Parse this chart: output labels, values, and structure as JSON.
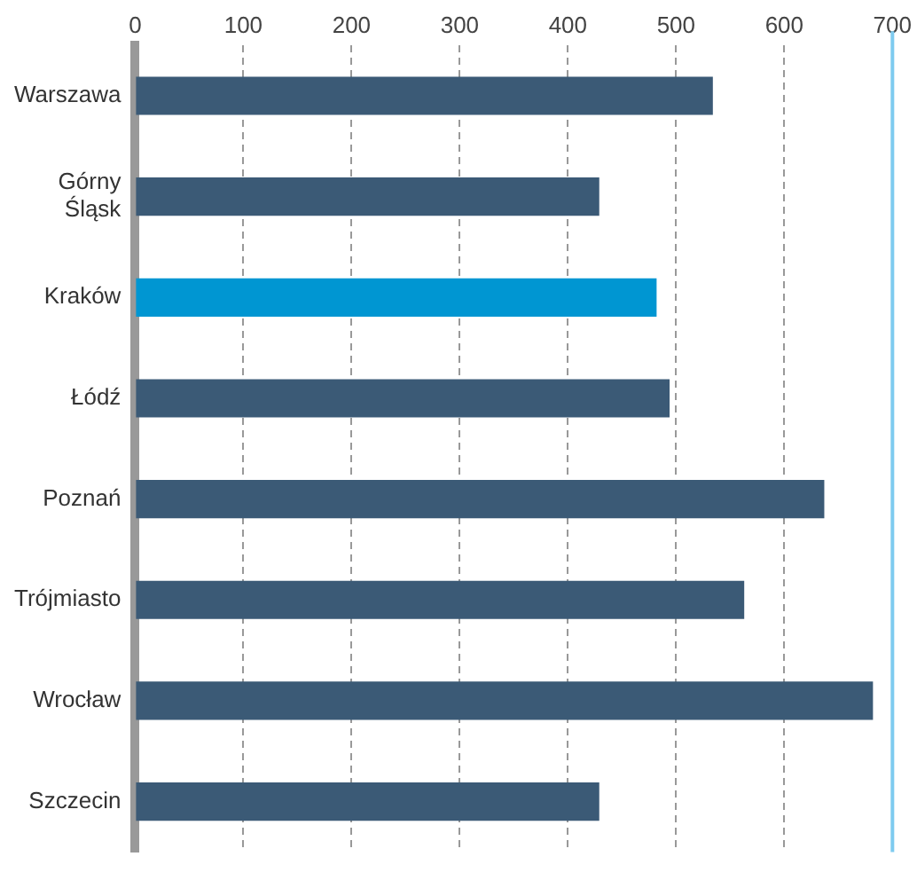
{
  "chart_data": {
    "type": "bar",
    "orientation": "horizontal",
    "categories": [
      "Warszawa",
      "Górny Śląsk",
      "Kraków",
      "Łódź",
      "Poznań",
      "Trójmiasto",
      "Wrocław",
      "Szczecin"
    ],
    "values": [
      534,
      429,
      482,
      494,
      637,
      563,
      682,
      429
    ],
    "colors": [
      "#3b5a76",
      "#3b5a76",
      "#0096d2",
      "#3b5a76",
      "#3b5a76",
      "#3b5a76",
      "#3b5a76",
      "#3b5a76"
    ],
    "xlim": [
      0,
      700
    ],
    "xticks": [
      0,
      100,
      200,
      300,
      400,
      500,
      600,
      700
    ],
    "grid": "x",
    "legend": false,
    "ref_lines": [
      {
        "axis": "x",
        "value": 700,
        "color": "#7ecbef"
      }
    ]
  }
}
